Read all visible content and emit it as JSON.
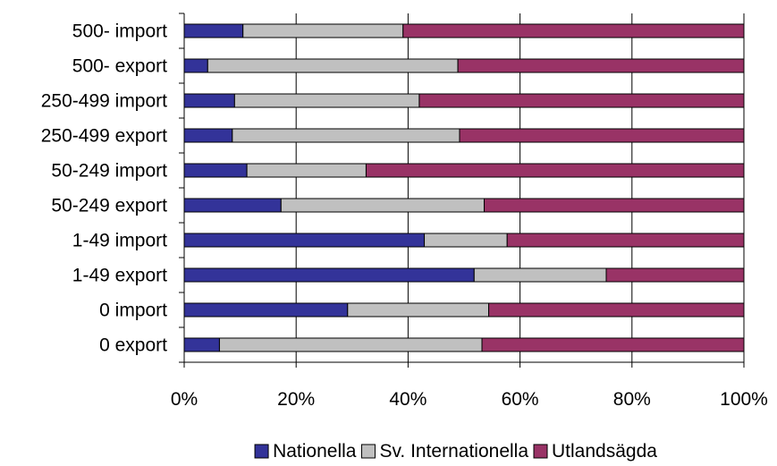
{
  "chart_data": {
    "type": "bar",
    "orientation": "horizontal",
    "stacked": true,
    "categories": [
      "500- import",
      "500- export",
      "250-499 import",
      "250-499 export",
      "50-249 import",
      "50-249 export",
      "1-49 import",
      "1-49 export",
      "0 import",
      "0 export"
    ],
    "series": [
      {
        "name": "Nationella",
        "color": "#333399",
        "values": [
          10.5,
          4.2,
          9,
          8.6,
          11.2,
          17.3,
          42.9,
          51.8,
          29.2,
          6.3
        ]
      },
      {
        "name": "Sv. Internationella",
        "color": "#c0c0c0",
        "values": [
          28.6,
          44.7,
          33,
          40.6,
          21.3,
          36.3,
          14.8,
          23.6,
          25.2,
          46.9
        ]
      },
      {
        "name": "Utlandsägda",
        "color": "#993366",
        "values": [
          60.9,
          51.1,
          58,
          50.8,
          67.5,
          46.4,
          42.3,
          24.6,
          45.6,
          46.8
        ]
      }
    ],
    "x_ticks": [
      "0%",
      "20%",
      "40%",
      "60%",
      "80%",
      "100%"
    ],
    "xlim": [
      0,
      100
    ],
    "grid": {
      "vertical": true,
      "horizontal": false
    },
    "legend_position": "bottom",
    "title": "",
    "xlabel": "",
    "ylabel": ""
  }
}
